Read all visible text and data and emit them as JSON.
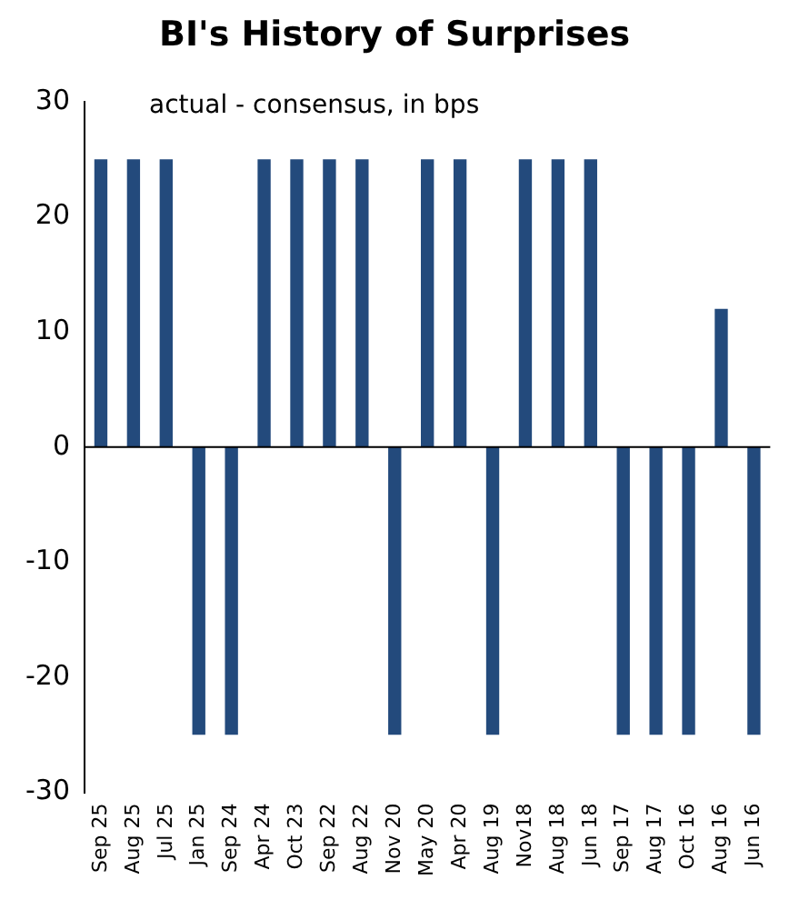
{
  "chart_data": {
    "type": "bar",
    "title": "BI's History of Surprises",
    "subtitle": "actual - consensus, in bps",
    "categories": [
      "Sep 25",
      "Aug 25",
      "Jul 25",
      "Jan 25",
      "Sep 24",
      "Apr 24",
      "Oct 23",
      "Sep 22",
      "Aug 22",
      "Nov 20",
      "May 20",
      "Apr 20",
      "Aug 19",
      "Nov18",
      "Aug 18",
      "Jun 18",
      "Sep 17",
      "Aug 17",
      "Oct 16",
      "Aug 16",
      "Jun 16"
    ],
    "values": [
      25,
      25,
      25,
      -25,
      -25,
      25,
      25,
      25,
      25,
      -25,
      25,
      25,
      -25,
      25,
      25,
      25,
      -25,
      -25,
      -25,
      12,
      -25
    ],
    "color": "#234a7c",
    "ylim": [
      -30,
      30
    ],
    "yticks": [
      -30,
      -20,
      -10,
      0,
      10,
      20,
      30
    ],
    "legend": false
  }
}
